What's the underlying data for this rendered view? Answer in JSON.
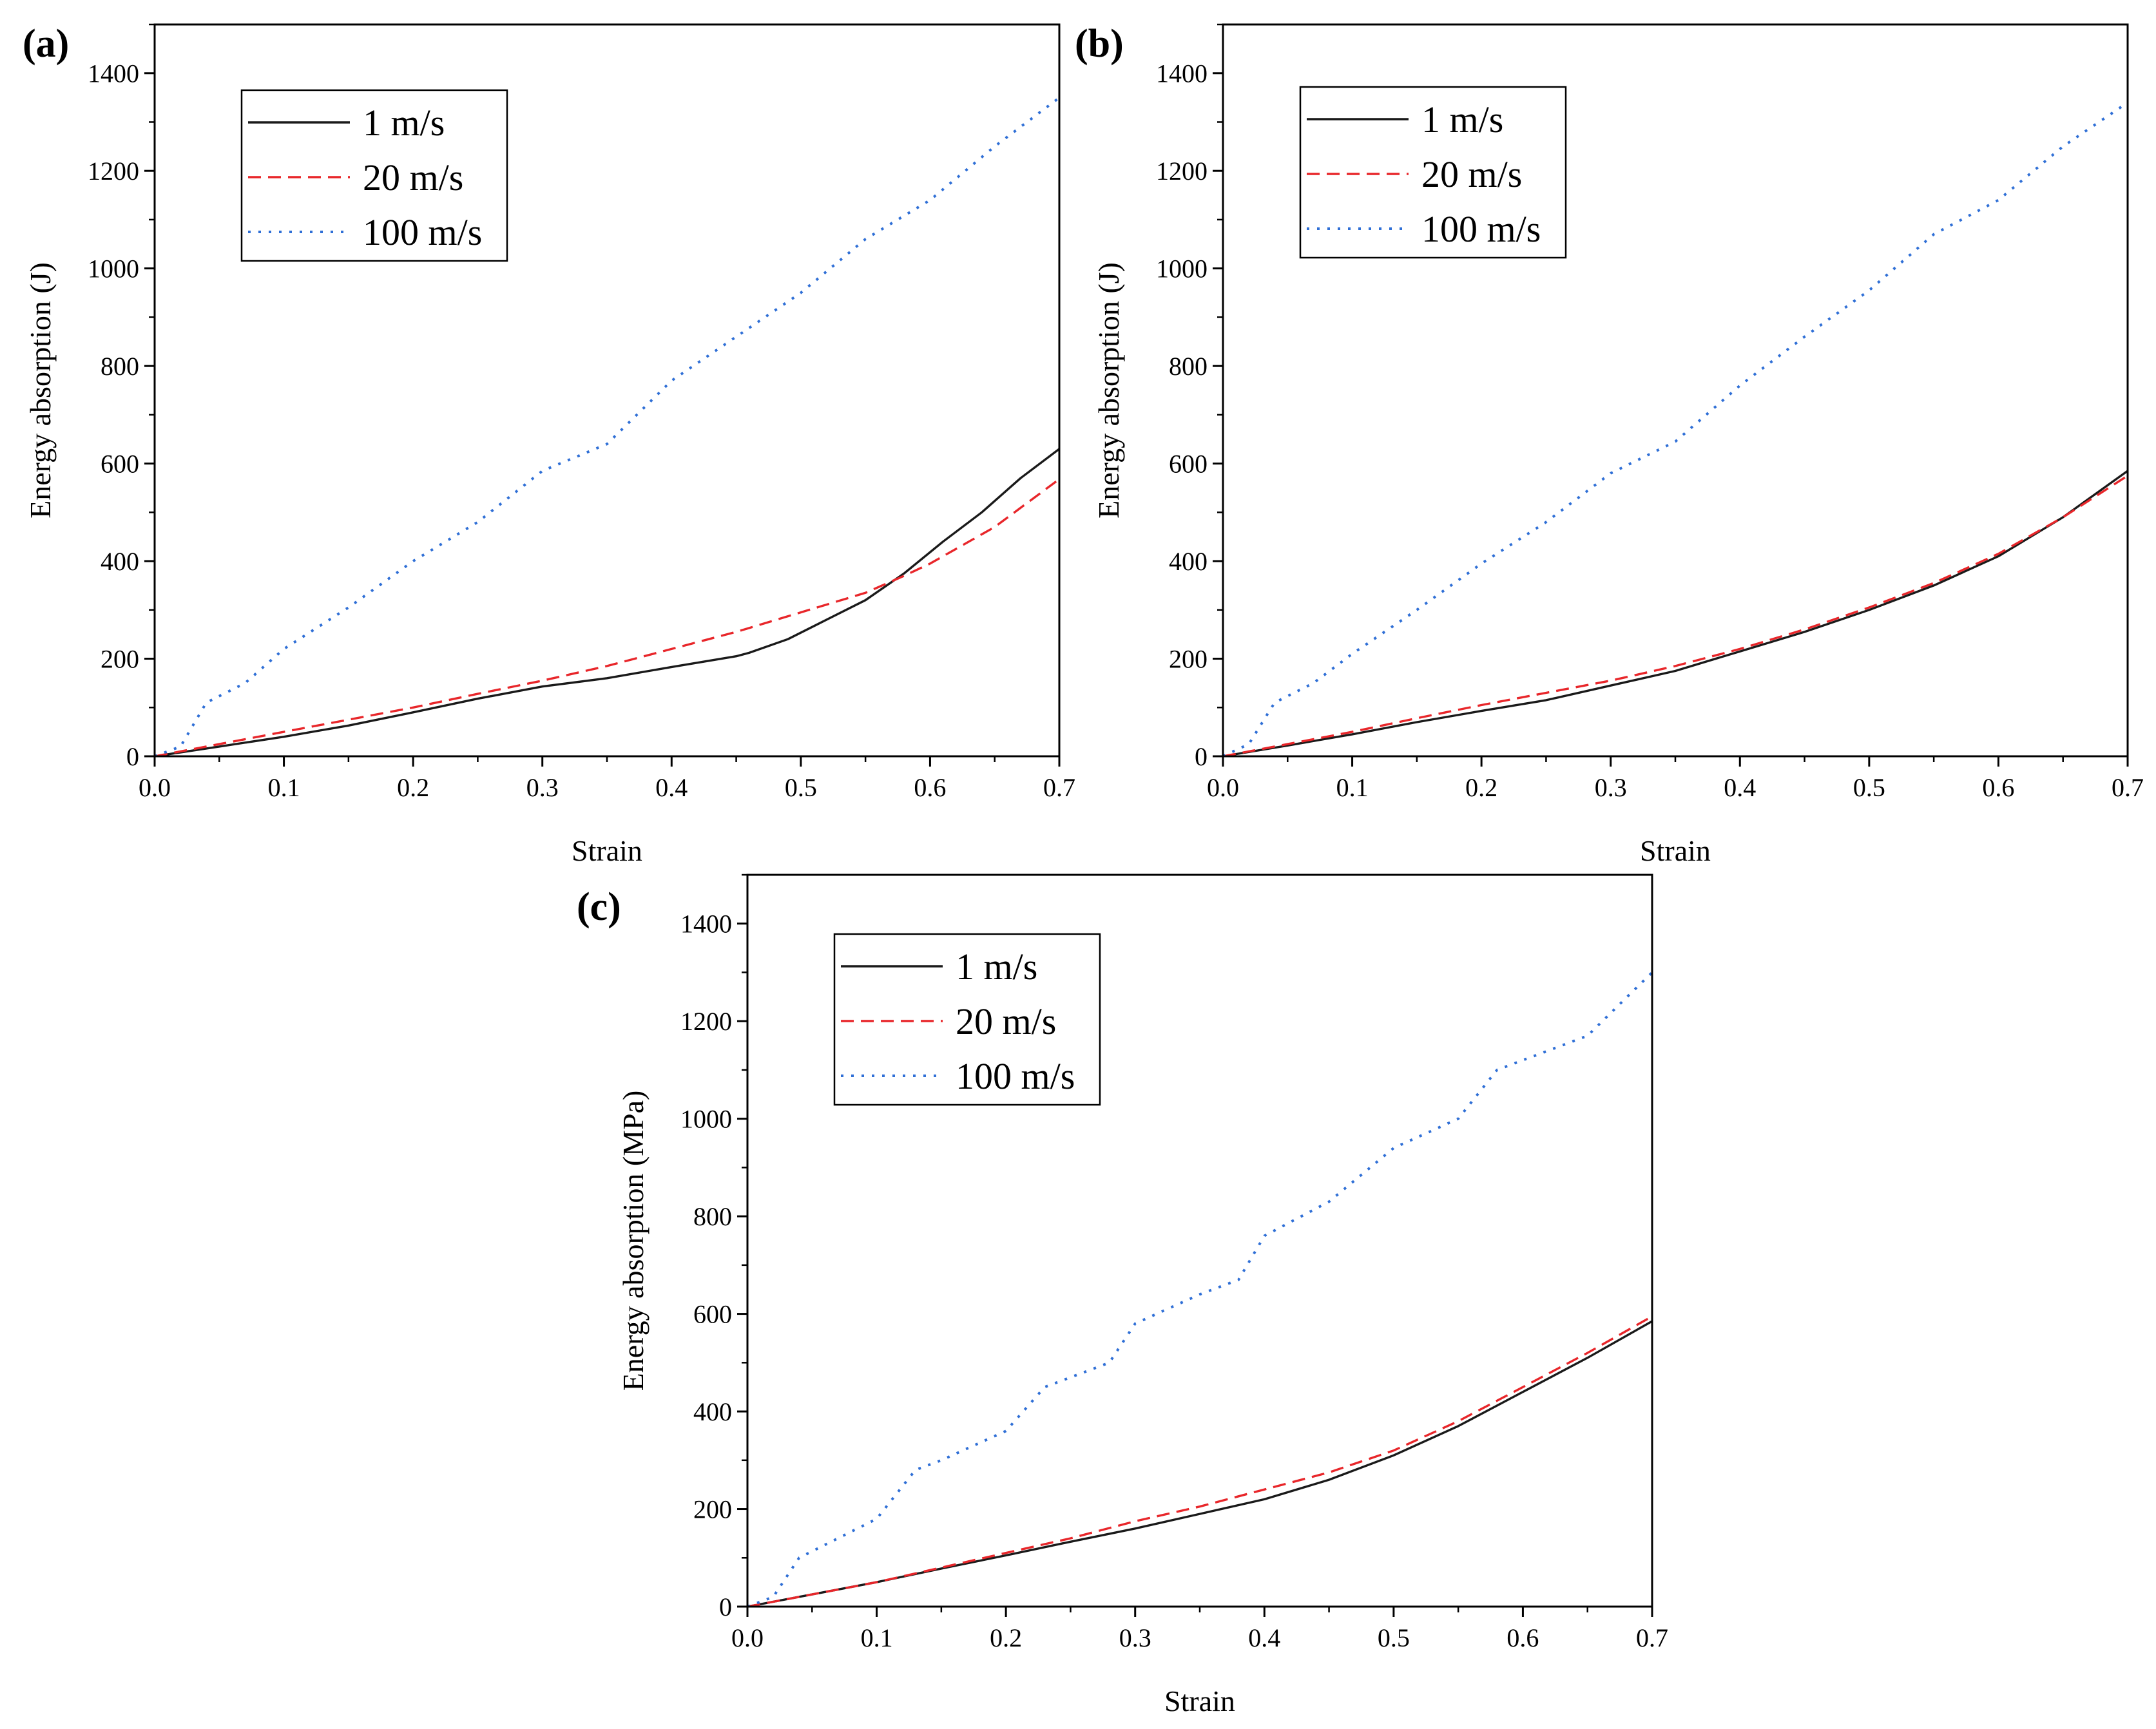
{
  "figure": {
    "panels": [
      "(a)",
      "(b)",
      "(c)"
    ]
  },
  "colors": {
    "series_1": "#1a1a1a",
    "series_20": "#e8262a",
    "series_100": "#2f6fd6",
    "axes": "#000000"
  },
  "chart_data": [
    {
      "panel": "(a)",
      "type": "line",
      "title": "",
      "xlabel": "Strain",
      "ylabel": "Energy absorption (J)",
      "xlim": [
        0.0,
        0.7
      ],
      "ylim": [
        0,
        1500
      ],
      "xticks": [
        0.0,
        0.1,
        0.2,
        0.3,
        0.4,
        0.5,
        0.6,
        0.7
      ],
      "xtick_labels": [
        "0.0",
        "0.1",
        "0.2",
        "0.3",
        "0.4",
        "0.5",
        "0.6",
        "0.7"
      ],
      "yticks": [
        0,
        200,
        400,
        600,
        800,
        1000,
        1200,
        1400
      ],
      "ytick_labels": [
        "0",
        "200",
        "400",
        "600",
        "800",
        "1000",
        "1200",
        "1400"
      ],
      "legend_position": "top-left",
      "series": [
        {
          "name": "1 m/s",
          "style": "solid",
          "x": [
            0,
            0.05,
            0.1,
            0.15,
            0.2,
            0.25,
            0.3,
            0.35,
            0.4,
            0.45,
            0.46,
            0.49,
            0.52,
            0.55,
            0.58,
            0.61,
            0.64,
            0.67,
            0.7
          ],
          "y": [
            0,
            20,
            40,
            63,
            90,
            118,
            143,
            160,
            183,
            205,
            212,
            240,
            280,
            320,
            375,
            440,
            500,
            570,
            630
          ]
        },
        {
          "name": "20 m/s",
          "style": "dashed",
          "x": [
            0,
            0.05,
            0.1,
            0.15,
            0.2,
            0.25,
            0.3,
            0.35,
            0.4,
            0.45,
            0.5,
            0.55,
            0.58,
            0.6,
            0.65,
            0.7
          ],
          "y": [
            0,
            25,
            50,
            75,
            100,
            128,
            155,
            185,
            220,
            255,
            295,
            335,
            370,
            395,
            470,
            568
          ]
        },
        {
          "name": "100 m/s",
          "style": "dotted",
          "x": [
            0,
            0.02,
            0.04,
            0.07,
            0.1,
            0.15,
            0.2,
            0.25,
            0.3,
            0.35,
            0.4,
            0.45,
            0.5,
            0.55,
            0.6,
            0.65,
            0.7
          ],
          "y": [
            0,
            20,
            110,
            150,
            220,
            305,
            400,
            480,
            585,
            640,
            770,
            860,
            950,
            1060,
            1140,
            1250,
            1350
          ]
        }
      ]
    },
    {
      "panel": "(b)",
      "type": "line",
      "title": "",
      "xlabel": "Strain",
      "ylabel": "Energy absorption (J)",
      "xlim": [
        0.0,
        0.7
      ],
      "ylim": [
        0,
        1500
      ],
      "xticks": [
        0.0,
        0.1,
        0.2,
        0.3,
        0.4,
        0.5,
        0.6,
        0.7
      ],
      "xtick_labels": [
        "0.0",
        "0.1",
        "0.2",
        "0.3",
        "0.4",
        "0.5",
        "0.6",
        "0.7"
      ],
      "yticks": [
        0,
        200,
        400,
        600,
        800,
        1000,
        1200,
        1400
      ],
      "ytick_labels": [
        "0",
        "200",
        "400",
        "600",
        "800",
        "1000",
        "1200",
        "1400"
      ],
      "legend_position": "top-left",
      "series": [
        {
          "name": "1 m/s",
          "style": "solid",
          "x": [
            0,
            0.05,
            0.1,
            0.15,
            0.2,
            0.25,
            0.3,
            0.35,
            0.4,
            0.45,
            0.5,
            0.55,
            0.6,
            0.65,
            0.7
          ],
          "y": [
            0,
            22,
            45,
            70,
            93,
            115,
            145,
            175,
            215,
            255,
            300,
            350,
            410,
            490,
            585
          ]
        },
        {
          "name": "20 m/s",
          "style": "dashed",
          "x": [
            0,
            0.05,
            0.1,
            0.15,
            0.2,
            0.25,
            0.3,
            0.35,
            0.4,
            0.45,
            0.5,
            0.55,
            0.6,
            0.65,
            0.7
          ],
          "y": [
            0,
            25,
            50,
            78,
            105,
            130,
            155,
            185,
            220,
            260,
            305,
            355,
            415,
            490,
            575
          ]
        },
        {
          "name": "100 m/s",
          "style": "dotted",
          "x": [
            0,
            0.02,
            0.04,
            0.07,
            0.1,
            0.15,
            0.2,
            0.25,
            0.3,
            0.35,
            0.4,
            0.45,
            0.5,
            0.55,
            0.6,
            0.65,
            0.7
          ],
          "y": [
            0,
            25,
            110,
            150,
            210,
            300,
            395,
            480,
            580,
            645,
            760,
            860,
            955,
            1070,
            1140,
            1250,
            1340
          ]
        }
      ]
    },
    {
      "panel": "(c)",
      "type": "line",
      "title": "",
      "xlabel": "Strain",
      "ylabel": "Energy absorption (MPa)",
      "xlim": [
        0.0,
        0.7
      ],
      "ylim": [
        0,
        1500
      ],
      "xticks": [
        0.0,
        0.1,
        0.2,
        0.3,
        0.4,
        0.5,
        0.6,
        0.7
      ],
      "xtick_labels": [
        "0.0",
        "0.1",
        "0.2",
        "0.3",
        "0.4",
        "0.5",
        "0.6",
        "0.7"
      ],
      "yticks": [
        0,
        200,
        400,
        600,
        800,
        1000,
        1200,
        1400
      ],
      "ytick_labels": [
        "0",
        "200",
        "400",
        "600",
        "800",
        "1000",
        "1200",
        "1400"
      ],
      "legend_position": "top-left",
      "series": [
        {
          "name": "1 m/s",
          "style": "solid",
          "x": [
            0,
            0.05,
            0.1,
            0.15,
            0.2,
            0.25,
            0.3,
            0.35,
            0.4,
            0.45,
            0.5,
            0.55,
            0.6,
            0.65,
            0.7
          ],
          "y": [
            0,
            25,
            50,
            78,
            105,
            133,
            160,
            190,
            220,
            260,
            310,
            370,
            440,
            510,
            585
          ]
        },
        {
          "name": "20 m/s",
          "style": "dashed",
          "x": [
            0,
            0.05,
            0.1,
            0.15,
            0.2,
            0.25,
            0.3,
            0.35,
            0.4,
            0.45,
            0.5,
            0.55,
            0.6,
            0.65,
            0.7
          ],
          "y": [
            0,
            25,
            50,
            80,
            110,
            140,
            175,
            205,
            240,
            275,
            320,
            380,
            450,
            520,
            595
          ]
        },
        {
          "name": "100 m/s",
          "style": "dotted",
          "x": [
            0,
            0.02,
            0.04,
            0.07,
            0.1,
            0.13,
            0.15,
            0.2,
            0.23,
            0.25,
            0.28,
            0.3,
            0.35,
            0.38,
            0.4,
            0.45,
            0.5,
            0.55,
            0.58,
            0.6,
            0.65,
            0.7
          ],
          "y": [
            0,
            20,
            100,
            140,
            180,
            280,
            300,
            360,
            450,
            470,
            500,
            580,
            640,
            670,
            760,
            830,
            940,
            1000,
            1100,
            1120,
            1170,
            1300
          ]
        }
      ]
    }
  ]
}
